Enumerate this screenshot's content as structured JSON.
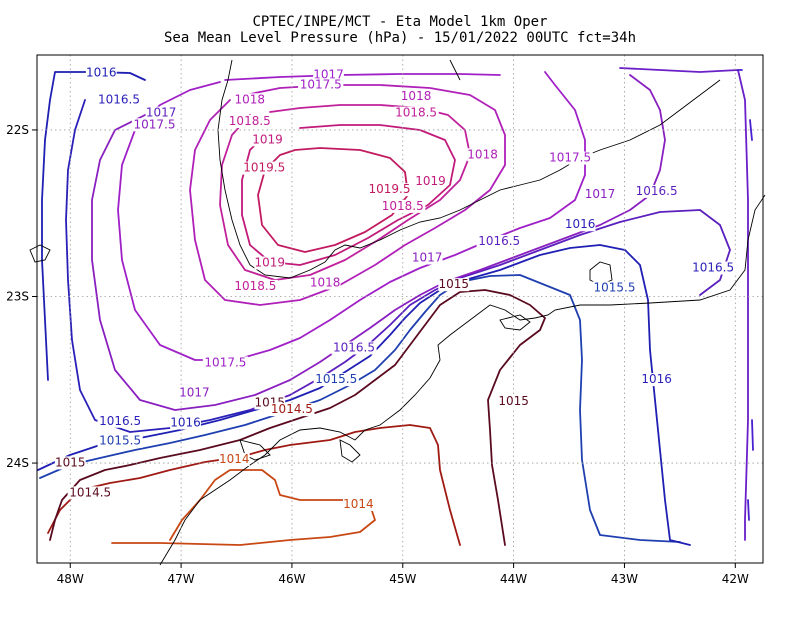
{
  "header": {
    "title_line1": "CPTEC/INPE/MCT -  Eta Model 1km Oper",
    "title_line2": "Sea Mean Level Pressure (hPa) - 15/01/2022 00UTC fct=34h"
  },
  "map": {
    "lon_range": [
      -48.3,
      -41.75
    ],
    "lat_range": [
      -24.6,
      -21.55
    ],
    "lon_ticks": [
      {
        "value": -48,
        "label": "48W"
      },
      {
        "value": -47,
        "label": "47W"
      },
      {
        "value": -46,
        "label": "46W"
      },
      {
        "value": -45,
        "label": "45W"
      },
      {
        "value": -44,
        "label": "44W"
      },
      {
        "value": -43,
        "label": "43W"
      },
      {
        "value": -42,
        "label": "42W"
      }
    ],
    "lat_ticks": [
      {
        "value": -22,
        "label": "22S"
      },
      {
        "value": -23,
        "label": "23S"
      },
      {
        "value": -24,
        "label": "24S"
      }
    ],
    "grid": true,
    "contour_labels": [
      {
        "text": "1016",
        "lon": -47.72,
        "lat": -21.68,
        "color": "#1f1fb4"
      },
      {
        "text": "1016.5",
        "lon": -47.56,
        "lat": -21.84,
        "color": "#2a1fb8"
      },
      {
        "text": "1017",
        "lon": -47.18,
        "lat": -21.92,
        "color": "#5a1fbe"
      },
      {
        "text": "1017.5",
        "lon": -47.24,
        "lat": -21.99,
        "color": "#8a1fc0"
      },
      {
        "text": "1017",
        "lon": -45.67,
        "lat": -21.69,
        "color": "#a020d0"
      },
      {
        "text": "1017.5",
        "lon": -45.74,
        "lat": -21.75,
        "color": "#a020c8"
      },
      {
        "text": "1018",
        "lon": -46.38,
        "lat": -21.84,
        "color": "#b020b8"
      },
      {
        "text": "1018",
        "lon": -44.88,
        "lat": -21.82,
        "color": "#b020b8"
      },
      {
        "text": "1018.5",
        "lon": -46.38,
        "lat": -21.97,
        "color": "#c0209a"
      },
      {
        "text": "1018.5",
        "lon": -44.88,
        "lat": -21.92,
        "color": "#c0209a"
      },
      {
        "text": "1019",
        "lon": -46.22,
        "lat": -22.08,
        "color": "#c21a7a"
      },
      {
        "text": "1019.5",
        "lon": -46.25,
        "lat": -22.25,
        "color": "#c21a60"
      },
      {
        "text": "1019.5",
        "lon": -45.12,
        "lat": -22.38,
        "color": "#c21a60"
      },
      {
        "text": "1019",
        "lon": -44.75,
        "lat": -22.33,
        "color": "#c21a7a"
      },
      {
        "text": "1018.5",
        "lon": -45.0,
        "lat": -22.48,
        "color": "#c0209a"
      },
      {
        "text": "1018",
        "lon": -44.28,
        "lat": -22.17,
        "color": "#b020b8"
      },
      {
        "text": "1017.5",
        "lon": -43.49,
        "lat": -22.19,
        "color": "#a020c8"
      },
      {
        "text": "1017",
        "lon": -43.22,
        "lat": -22.41,
        "color": "#8a1fc0"
      },
      {
        "text": "1016.5",
        "lon": -42.71,
        "lat": -22.39,
        "color": "#5a1fbe"
      },
      {
        "text": "1016",
        "lon": -43.4,
        "lat": -22.59,
        "color": "#2a1fb8"
      },
      {
        "text": "1016.5",
        "lon": -44.13,
        "lat": -22.69,
        "color": "#5a1fbe"
      },
      {
        "text": "1017",
        "lon": -44.78,
        "lat": -22.79,
        "color": "#8a1fc0"
      },
      {
        "text": "1015",
        "lon": -44.54,
        "lat": -22.95,
        "color": "#5a0a1e"
      },
      {
        "text": "1015.5",
        "lon": -43.09,
        "lat": -22.97,
        "color": "#1f3fb0"
      },
      {
        "text": "1016.5",
        "lon": -42.2,
        "lat": -22.85,
        "color": "#2a1fb8"
      },
      {
        "text": "1016.5",
        "lon": -45.44,
        "lat": -23.33,
        "color": "#5a1fbe"
      },
      {
        "text": "1015.5",
        "lon": -45.6,
        "lat": -23.52,
        "color": "#1f3fb0"
      },
      {
        "text": "1016",
        "lon": -42.71,
        "lat": -23.52,
        "color": "#2a1fb8"
      },
      {
        "text": "1019",
        "lon": -46.2,
        "lat": -22.82,
        "color": "#c21a7a"
      },
      {
        "text": "1018.5",
        "lon": -46.33,
        "lat": -22.96,
        "color": "#c0209a"
      },
      {
        "text": "1018",
        "lon": -45.7,
        "lat": -22.94,
        "color": "#b020b8"
      },
      {
        "text": "1017.5",
        "lon": -46.6,
        "lat": -23.42,
        "color": "#a020c8"
      },
      {
        "text": "1017",
        "lon": -46.88,
        "lat": -23.6,
        "color": "#8a1fc0"
      },
      {
        "text": "1016.5",
        "lon": -47.55,
        "lat": -23.77,
        "color": "#2a1fb8"
      },
      {
        "text": "1016",
        "lon": -46.96,
        "lat": -23.78,
        "color": "#1f1fb4"
      },
      {
        "text": "1015.5",
        "lon": -47.55,
        "lat": -23.89,
        "color": "#1f3fb0"
      },
      {
        "text": "1015",
        "lon": -46.2,
        "lat": -23.66,
        "color": "#5a0a1e"
      },
      {
        "text": "1014.5",
        "lon": -46.0,
        "lat": -23.7,
        "color": "#a01a14"
      },
      {
        "text": "1014",
        "lon": -46.52,
        "lat": -24.0,
        "color": "#c84814"
      },
      {
        "text": "1015",
        "lon": -48.0,
        "lat": -24.02,
        "color": "#5a0a1e"
      },
      {
        "text": "1014.5",
        "lon": -47.82,
        "lat": -24.2,
        "color": "#5a0a1e"
      },
      {
        "text": "1014",
        "lon": -45.4,
        "lat": -24.27,
        "color": "#c84814"
      },
      {
        "text": "1015",
        "lon": -44.0,
        "lat": -23.65,
        "color": "#5a0a1e"
      }
    ]
  }
}
